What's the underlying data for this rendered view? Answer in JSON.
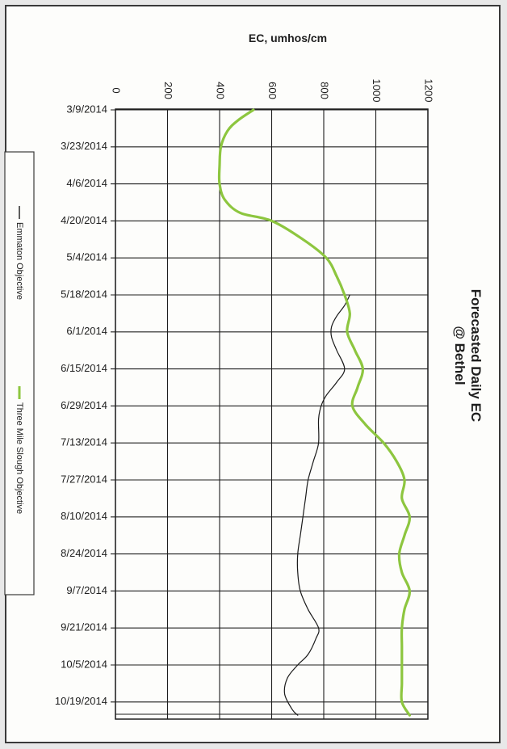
{
  "chart_data": {
    "type": "line",
    "orientation": "rotated-90-clockwise",
    "title_lines": [
      "Forecasted Daily EC",
      "@ Bethel"
    ],
    "ylabel": "EC, umhos/cm",
    "xlabel": "",
    "ylim": [
      0,
      1200
    ],
    "y_ticks": [
      "0",
      "200",
      "400",
      "600",
      "800",
      "1000",
      "1200"
    ],
    "x_tick_labels": [
      "3/9/2014",
      "3/23/2014",
      "4/6/2014",
      "4/20/2014",
      "5/4/2014",
      "5/18/2014",
      "6/1/2014",
      "6/15/2014",
      "6/29/2014",
      "7/13/2014",
      "7/27/2014",
      "8/10/2014",
      "8/24/2014",
      "9/7/2014",
      "9/21/2014",
      "10/5/2014",
      "10/19/2014"
    ],
    "grid": true,
    "legend_position": "left",
    "series": [
      {
        "name": "Emmaton Objective",
        "color": "#1a1a1a",
        "x": [
          "5/18/2014",
          "5/22/2014",
          "5/26/2014",
          "5/30/2014",
          "6/3/2014",
          "6/8/2014",
          "6/15/2014",
          "6/20/2014",
          "6/25/2014",
          "6/29/2014",
          "7/4/2014",
          "7/13/2014",
          "7/20/2014",
          "7/27/2014",
          "8/3/2014",
          "8/10/2014",
          "8/17/2014",
          "8/24/2014",
          "8/31/2014",
          "9/7/2014",
          "9/14/2014",
          "9/21/2014",
          "9/25/2014",
          "10/1/2014",
          "10/5/2014",
          "10/10/2014",
          "10/16/2014",
          "10/22/2014",
          "10/24/2014"
        ],
        "y": [
          900,
          880,
          850,
          830,
          830,
          850,
          880,
          850,
          810,
          790,
          780,
          780,
          760,
          740,
          730,
          720,
          710,
          700,
          700,
          710,
          740,
          780,
          770,
          740,
          700,
          660,
          650,
          680,
          700
        ]
      },
      {
        "name": "Three Mile Slough Objective",
        "color": "#8dc63f",
        "x": [
          "3/9/2014",
          "3/13/2014",
          "3/17/2014",
          "3/23/2014",
          "3/30/2014",
          "4/6/2014",
          "4/12/2014",
          "4/17/2014",
          "4/20/2014",
          "4/27/2014",
          "5/4/2014",
          "5/11/2014",
          "5/18/2014",
          "5/25/2014",
          "6/1/2014",
          "6/8/2014",
          "6/15/2014",
          "6/22/2014",
          "6/29/2014",
          "7/6/2014",
          "7/13/2014",
          "7/20/2014",
          "7/27/2014",
          "8/3/2014",
          "8/10/2014",
          "8/17/2014",
          "8/24/2014",
          "8/31/2014",
          "9/7/2014",
          "9/14/2014",
          "9/21/2014",
          "9/28/2014",
          "10/5/2014",
          "10/12/2014",
          "10/19/2014",
          "10/24/2014"
        ],
        "y": [
          530,
          470,
          430,
          405,
          400,
          400,
          420,
          480,
          600,
          720,
          810,
          850,
          880,
          900,
          890,
          920,
          950,
          930,
          910,
          960,
          1030,
          1080,
          1110,
          1100,
          1130,
          1110,
          1090,
          1100,
          1130,
          1110,
          1100,
          1100,
          1100,
          1100,
          1100,
          1130
        ]
      }
    ]
  }
}
